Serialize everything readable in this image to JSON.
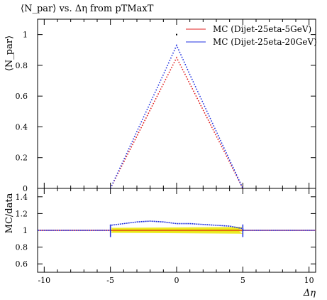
{
  "title": "⟨N_par⟩ vs. Δη from pTMaxT",
  "colors": {
    "series_a": "#e02020",
    "series_b": "#2030e0",
    "ratio_ref": "#e8e800",
    "axis": "#000000"
  },
  "chart_data": [
    {
      "type": "line",
      "panel": "main",
      "title": "⟨N_par⟩ vs. Δη from pTMaxT",
      "xlabel": "",
      "ylabel": "⟨N_par⟩",
      "xlim": [
        -10.5,
        10.5
      ],
      "ylim": [
        0,
        1.1
      ],
      "yticks": [
        0,
        0.2,
        0.4,
        0.6,
        0.8,
        1
      ],
      "yticklabels": [
        "0",
        "0.2",
        "0.4",
        "0.6",
        "0.8",
        "1"
      ],
      "legend_position": "top-right",
      "series": [
        {
          "name": "MC (Dijet-25eta-5GeV)",
          "color": "#e02020",
          "x": [
            -5,
            -4,
            -3,
            -2,
            -1,
            0,
            1,
            2,
            3,
            4,
            5
          ],
          "y": [
            0,
            0.17,
            0.34,
            0.51,
            0.68,
            0.85,
            0.68,
            0.51,
            0.34,
            0.17,
            0
          ]
        },
        {
          "name": "MC (Dijet-25eta-20GeV)",
          "color": "#2030e0",
          "x": [
            -5,
            -4,
            -3,
            -2,
            -1,
            0,
            1,
            2,
            3,
            4,
            5
          ],
          "y": [
            0,
            0.185,
            0.37,
            0.555,
            0.74,
            0.93,
            0.74,
            0.555,
            0.37,
            0.185,
            0
          ]
        }
      ]
    },
    {
      "type": "line",
      "panel": "ratio",
      "xlabel": "Δη",
      "ylabel": "MC/data",
      "xlim": [
        -10.5,
        10.5
      ],
      "ylim": [
        0.5,
        1.5
      ],
      "xticks": [
        -10,
        -5,
        0,
        5,
        10
      ],
      "xticklabels": [
        "-10",
        "-5",
        "0",
        "5",
        "10"
      ],
      "yticks": [
        0.6,
        0.8,
        1,
        1.2,
        1.4
      ],
      "yticklabels": [
        "0.6",
        "0.8",
        "1",
        "1.2",
        "1.4"
      ],
      "series": [
        {
          "name": "",
          "color": "#e02020",
          "x": [
            -10.5,
            10.5
          ],
          "y": [
            1,
            1
          ]
        },
        {
          "name": "",
          "color": "#2030e0",
          "x": [
            -10.5,
            -5,
            -5,
            -4,
            -3,
            -2,
            -1,
            0,
            1,
            2,
            3,
            4,
            5,
            5,
            10.5
          ],
          "y": [
            1,
            1,
            1.06,
            1.08,
            1.1,
            1.11,
            1.1,
            1.08,
            1.08,
            1.07,
            1.06,
            1.05,
            1.02,
            1,
            1
          ]
        }
      ]
    }
  ]
}
